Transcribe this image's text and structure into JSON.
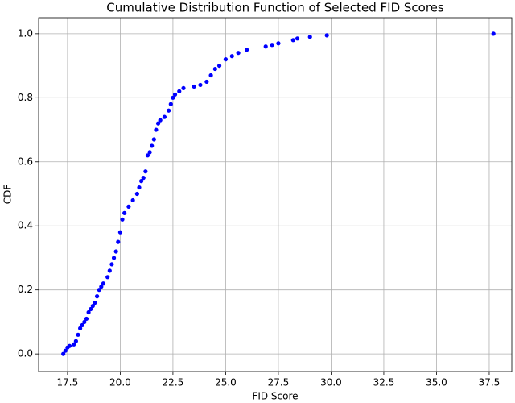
{
  "chart_data": {
    "type": "scatter",
    "title": "Cumulative Distribution Function of Selected FID Scores",
    "x_label": "FID Score",
    "y_label": "CDF",
    "grid": true,
    "series": [
      {
        "color": "#0000ff",
        "x": [
          17.3,
          17.4,
          17.5,
          17.6,
          17.8,
          17.9,
          18.0,
          18.1,
          18.2,
          18.3,
          18.4,
          18.5,
          18.6,
          18.7,
          18.8,
          18.9,
          19.0,
          19.1,
          19.2,
          19.4,
          19.5,
          19.6,
          19.7,
          19.8,
          19.9,
          20.0,
          20.1,
          20.2,
          20.4,
          20.6,
          20.8,
          20.9,
          21.0,
          21.1,
          21.2,
          21.3,
          21.4,
          21.5,
          21.6,
          21.7,
          21.8,
          21.9,
          22.1,
          22.3,
          22.4,
          22.5,
          22.6,
          22.8,
          23.0,
          23.5,
          23.8,
          24.1,
          24.3,
          24.5,
          24.7,
          25.0,
          25.3,
          25.6,
          26.0,
          26.9,
          27.2,
          27.5,
          28.2,
          28.4,
          29.0,
          29.8,
          37.7
        ],
        "values": [
          0.0,
          0.01,
          0.02,
          0.025,
          0.03,
          0.04,
          0.06,
          0.08,
          0.09,
          0.1,
          0.11,
          0.13,
          0.14,
          0.15,
          0.16,
          0.18,
          0.2,
          0.21,
          0.22,
          0.24,
          0.26,
          0.28,
          0.3,
          0.32,
          0.35,
          0.38,
          0.42,
          0.44,
          0.46,
          0.48,
          0.5,
          0.52,
          0.54,
          0.55,
          0.57,
          0.62,
          0.63,
          0.65,
          0.67,
          0.7,
          0.72,
          0.73,
          0.74,
          0.76,
          0.78,
          0.8,
          0.81,
          0.82,
          0.83,
          0.835,
          0.84,
          0.85,
          0.87,
          0.89,
          0.9,
          0.92,
          0.93,
          0.94,
          0.95,
          0.96,
          0.965,
          0.97,
          0.98,
          0.985,
          0.99,
          0.995,
          1.0
        ]
      }
    ],
    "xlim": [
      16.13,
      38.57
    ],
    "xticks": [
      17.5,
      {
        "value": 20,
        "label": "20.0"
      },
      22.5,
      {
        "value": 25,
        "label": "25.0"
      },
      27.5,
      {
        "value": 30,
        "label": "30.0"
      },
      32.5,
      {
        "value": 35,
        "label": "35.0"
      },
      37.5
    ],
    "ylim": [
      -0.055,
      1.05
    ],
    "yticks": [
      {
        "value": 0,
        "label": "0.0"
      },
      0.2,
      0.4,
      0.6,
      0.8,
      {
        "value": 1,
        "label": "1.0"
      }
    ]
  }
}
